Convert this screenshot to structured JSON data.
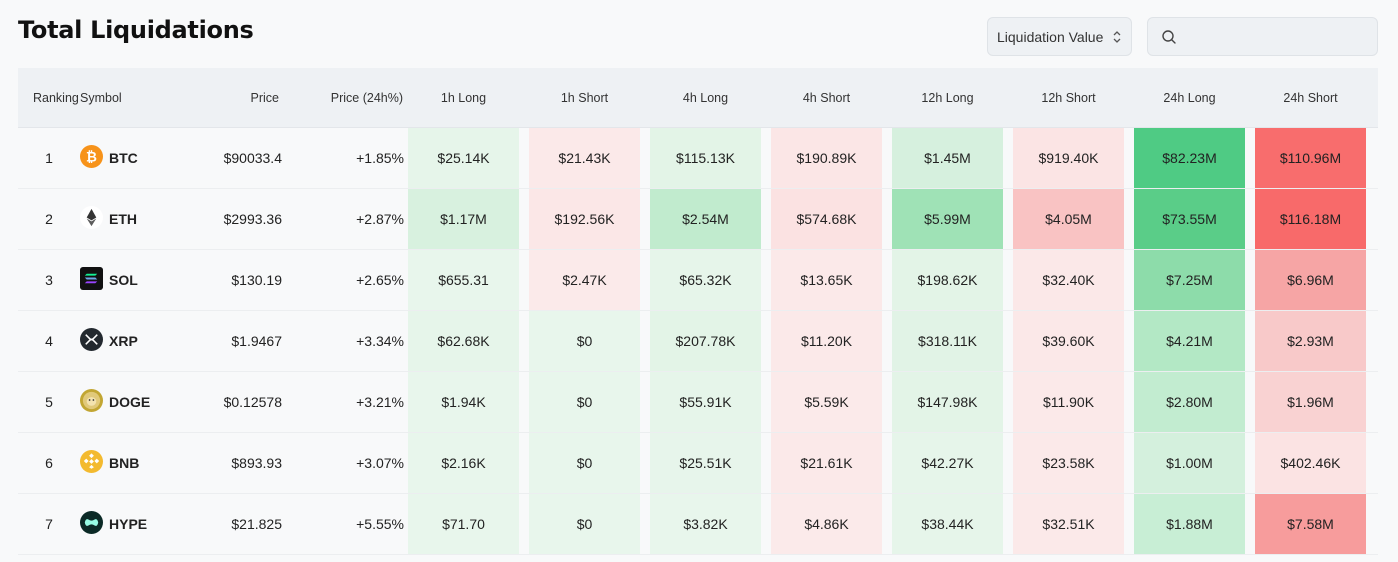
{
  "title": "Total Liquidations",
  "filter": {
    "selected": "Liquidation Value"
  },
  "search": {
    "placeholder": ""
  },
  "headers": {
    "ranking": "Ranking",
    "symbol": "Symbol",
    "price": "Price",
    "change": "Price (24h%)",
    "h1_long": "1h Long",
    "h1_short": "1h Short",
    "h4_long": "4h Long",
    "h4_short": "4h Short",
    "h12_long": "12h Long",
    "h12_short": "12h Short",
    "h24_long": "24h Long",
    "h24_short": "24h Short"
  },
  "rows": [
    {
      "rank": "1",
      "symbol": "BTC",
      "icon": "btc-icon",
      "price": "$90033.4",
      "change": "+1.85%",
      "h1_long": "$25.14K",
      "h1_short": "$21.43K",
      "h4_long": "$115.13K",
      "h4_short": "$190.89K",
      "h12_long": "$1.45M",
      "h12_short": "$919.40K",
      "h24_long": "$82.23M",
      "h24_short": "$110.96M",
      "colors": [
        "#e6f5ea",
        "#fbe9e9",
        "#e3f4e7",
        "#fbe6e6",
        "#d6f0de",
        "#fbe4e4",
        "#4fcb84",
        "#f86d6d"
      ]
    },
    {
      "rank": "2",
      "symbol": "ETH",
      "icon": "eth-icon",
      "price": "$2993.36",
      "change": "+2.87%",
      "h1_long": "$1.17M",
      "h1_short": "$192.56K",
      "h4_long": "$2.54M",
      "h4_short": "$574.68K",
      "h12_long": "$5.99M",
      "h12_short": "$4.05M",
      "h24_long": "$73.55M",
      "h24_short": "$116.18M",
      "colors": [
        "#d8f1df",
        "#fbe7e7",
        "#c1ebce",
        "#fbe2e2",
        "#9fe2b6",
        "#f9c3c3",
        "#5acd88",
        "#f86a6a"
      ]
    },
    {
      "rank": "3",
      "symbol": "SOL",
      "icon": "sol-icon",
      "price": "$130.19",
      "change": "+2.65%",
      "h1_long": "$655.31",
      "h1_short": "$2.47K",
      "h4_long": "$65.32K",
      "h4_short": "$13.65K",
      "h12_long": "$198.62K",
      "h12_short": "$32.40K",
      "h24_long": "$7.25M",
      "h24_short": "$6.96M",
      "colors": [
        "#e8f6ec",
        "#fbeaea",
        "#e6f5ea",
        "#fbe9e9",
        "#e3f4e7",
        "#fbe8e8",
        "#8ddcaa",
        "#f6a5a5"
      ]
    },
    {
      "rank": "4",
      "symbol": "XRP",
      "icon": "xrp-icon",
      "price": "$1.9467",
      "change": "+3.34%",
      "h1_long": "$62.68K",
      "h1_short": "$0",
      "h4_long": "$207.78K",
      "h4_short": "$11.20K",
      "h12_long": "$318.11K",
      "h12_short": "$39.60K",
      "h24_long": "$4.21M",
      "h24_short": "$2.93M",
      "colors": [
        "#e6f5ea",
        "#e8f6ec",
        "#e3f4e7",
        "#fbe9e9",
        "#e1f3e6",
        "#fbe8e8",
        "#b3e8c5",
        "#f8c9c9"
      ]
    },
    {
      "rank": "5",
      "symbol": "DOGE",
      "icon": "doge-icon",
      "price": "$0.12578",
      "change": "+3.21%",
      "h1_long": "$1.94K",
      "h1_short": "$0",
      "h4_long": "$55.91K",
      "h4_short": "$5.59K",
      "h12_long": "$147.98K",
      "h12_short": "$11.90K",
      "h24_long": "$2.80M",
      "h24_short": "$1.96M",
      "colors": [
        "#e8f6ec",
        "#e8f6ec",
        "#e6f5ea",
        "#fbeaea",
        "#e3f4e7",
        "#fbe9e9",
        "#c2ecd0",
        "#f9d2d2"
      ]
    },
    {
      "rank": "6",
      "symbol": "BNB",
      "icon": "bnb-icon",
      "price": "$893.93",
      "change": "+3.07%",
      "h1_long": "$2.16K",
      "h1_short": "$0",
      "h4_long": "$25.51K",
      "h4_short": "$21.61K",
      "h12_long": "$42.27K",
      "h12_short": "$23.58K",
      "h24_long": "$1.00M",
      "h24_short": "$402.46K",
      "colors": [
        "#e8f6ec",
        "#e8f6ec",
        "#e7f5eb",
        "#fbe9e9",
        "#e6f5ea",
        "#fbe9e9",
        "#d4f0dd",
        "#fbe3e3"
      ]
    },
    {
      "rank": "7",
      "symbol": "HYPE",
      "icon": "hype-icon",
      "price": "$21.825",
      "change": "+5.55%",
      "h1_long": "$71.70",
      "h1_short": "$0",
      "h4_long": "$3.82K",
      "h4_short": "$4.86K",
      "h12_long": "$38.44K",
      "h12_short": "$32.51K",
      "h24_long": "$1.88M",
      "h24_short": "$7.58M",
      "colors": [
        "#e8f6ec",
        "#e8f6ec",
        "#e8f6ec",
        "#fbeaea",
        "#e6f5ea",
        "#fbe9e9",
        "#c8eed5",
        "#f79c9c"
      ]
    }
  ]
}
